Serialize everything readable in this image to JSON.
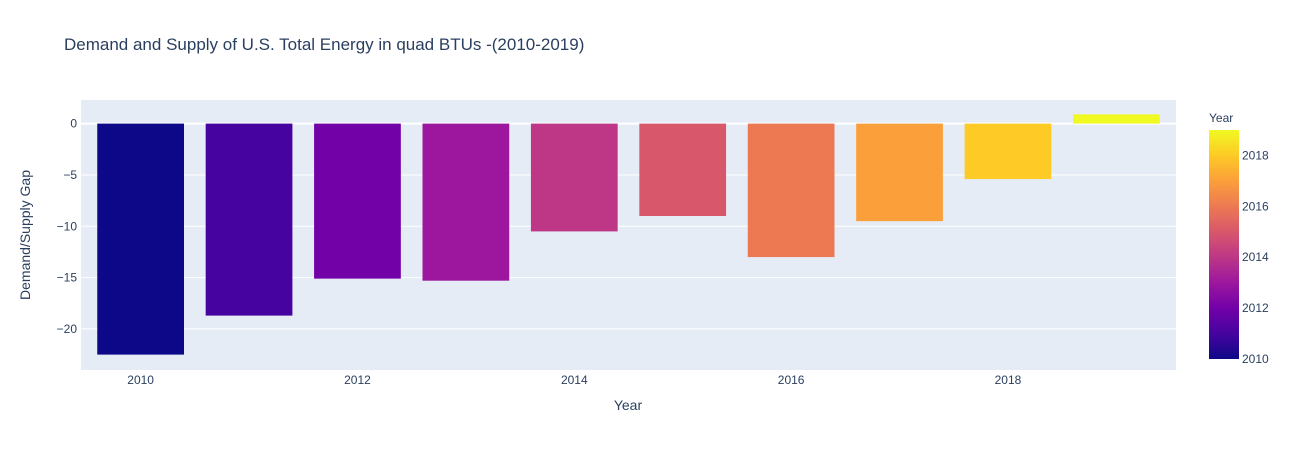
{
  "chart_data": {
    "type": "bar",
    "title": "Demand and Supply of U.S. Total Energy in quad BTUs -(2010-2019)",
    "xlabel": "Year",
    "ylabel": "Demand/Supply Gap",
    "x": [
      2010,
      2011,
      2012,
      2013,
      2014,
      2015,
      2016,
      2017,
      2018,
      2019
    ],
    "values": [
      -22.5,
      -18.7,
      -15.1,
      -15.3,
      -10.5,
      -9.0,
      -13.0,
      -9.5,
      -5.4,
      0.9
    ],
    "xticks": [
      2010,
      2012,
      2014,
      2016,
      2018
    ],
    "yticks": [
      0,
      -5,
      -10,
      -15,
      -20
    ],
    "ytick_labels": [
      "0",
      "−5",
      "−10",
      "−15",
      "−20"
    ],
    "ylim": [
      -24,
      2.3
    ],
    "xlim": [
      2009.45,
      2019.55
    ],
    "grid": true,
    "colorbar": {
      "title": "Year",
      "range": [
        2010,
        2019
      ],
      "ticks": [
        2010,
        2012,
        2014,
        2016,
        2018
      ],
      "colorscale": [
        "#0d0887",
        "#46039f",
        "#7201a8",
        "#9c179e",
        "#bd3786",
        "#d8576b",
        "#ed7953",
        "#fb9f3a",
        "#fdca26",
        "#f0f921"
      ]
    },
    "colors": {
      "plot_bg": "#e5ecf6",
      "grid": "#ffffff",
      "text": "#2a3f5f"
    }
  }
}
